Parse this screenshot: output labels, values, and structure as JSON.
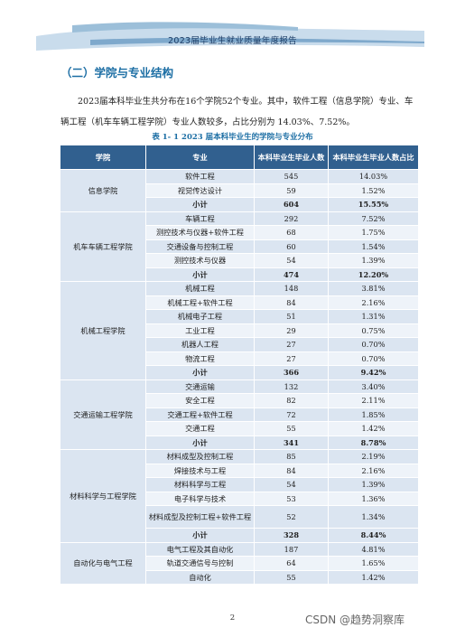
{
  "header": {
    "title": "2023届毕业生就业质量年度报告"
  },
  "section_title": "（二）学院与专业结构",
  "paragraph": "2023届本科毕业生共分布在16个学院52个专业。其中，软件工程（信息学院）专业、车辆工程（机车车辆工程学院）专业人数较多，占比分别为 14.03%、7.52%。",
  "table": {
    "caption": "表 1- 1  2023 届本科毕业生的学院与专业分布",
    "headers": [
      "学院",
      "专业",
      "本科毕业生毕业人数",
      "本科毕业生毕业人数占比"
    ],
    "groups": [
      {
        "college": "信息学院",
        "rows": [
          [
            "软件工程",
            "545",
            "14.03%"
          ],
          [
            "视觉传达设计",
            "59",
            "1.52%"
          ]
        ],
        "subtotal": [
          "小计",
          "604",
          "15.55%"
        ]
      },
      {
        "college": "机车车辆工程学院",
        "rows": [
          [
            "车辆工程",
            "292",
            "7.52%"
          ],
          [
            "测控技术与仪器+软件工程",
            "68",
            "1.75%"
          ],
          [
            "交通设备与控制工程",
            "60",
            "1.54%"
          ],
          [
            "测控技术与仪器",
            "54",
            "1.39%"
          ]
        ],
        "subtotal": [
          "小计",
          "474",
          "12.20%"
        ]
      },
      {
        "college": "机械工程学院",
        "rows": [
          [
            "机械工程",
            "148",
            "3.81%"
          ],
          [
            "机械工程+软件工程",
            "84",
            "2.16%"
          ],
          [
            "机械电子工程",
            "51",
            "1.31%"
          ],
          [
            "工业工程",
            "29",
            "0.75%"
          ],
          [
            "机器人工程",
            "27",
            "0.70%"
          ],
          [
            "物流工程",
            "27",
            "0.70%"
          ]
        ],
        "subtotal": [
          "小计",
          "366",
          "9.42%"
        ]
      },
      {
        "college": "交通运输工程学院",
        "rows": [
          [
            "交通运输",
            "132",
            "3.40%"
          ],
          [
            "安全工程",
            "82",
            "2.11%"
          ],
          [
            "交通工程+软件工程",
            "72",
            "1.85%"
          ],
          [
            "交通工程",
            "55",
            "1.42%"
          ]
        ],
        "subtotal": [
          "小计",
          "341",
          "8.78%"
        ]
      },
      {
        "college": "材料科学与工程学院",
        "rows": [
          [
            "材料成型及控制工程",
            "85",
            "2.19%"
          ],
          [
            "焊接技术与工程",
            "84",
            "2.16%"
          ],
          [
            "材料科学与工程",
            "54",
            "1.39%"
          ],
          [
            "电子科学与技术",
            "53",
            "1.36%"
          ],
          [
            "材料成型及控制工程+软件工程",
            "52",
            "1.34%"
          ]
        ],
        "subtotal": [
          "小计",
          "328",
          "8.44%"
        ]
      },
      {
        "college": "自动化与电气工程",
        "rows": [
          [
            "电气工程及其自动化",
            "187",
            "4.81%"
          ],
          [
            "轨道交通信号与控制",
            "64",
            "1.65%"
          ],
          [
            "自动化",
            "55",
            "1.42%"
          ]
        ],
        "subtotal": null
      }
    ]
  },
  "page_number": "2",
  "watermark": "CSDN @趋势洞察库"
}
